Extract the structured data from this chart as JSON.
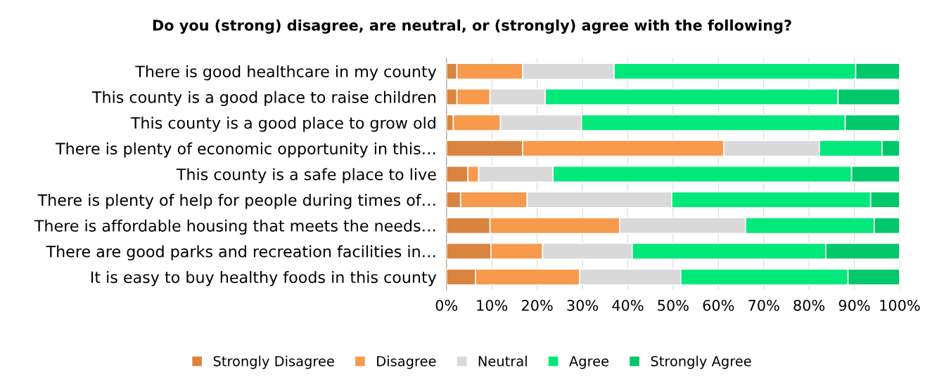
{
  "chart_data": {
    "type": "bar",
    "orientation": "horizontal",
    "stacked": true,
    "title": "Do you (strong) disagree, are neutral, or (strongly) agree with the following?",
    "categories": [
      "There is good healthcare in my county",
      "This county is a good place to raise children",
      "This county is a good place to grow old",
      "There is plenty of economic opportunity in this…",
      "This county is a safe place to live",
      "There is plenty of help for people during times of…",
      "There is affordable housing that meets the needs…",
      "There are good parks and recreation facilities in…",
      "It is easy to buy healthy foods in this county"
    ],
    "series": [
      {
        "name": "Strongly Disagree",
        "color": "#d9843f",
        "values": [
          2.3,
          2.3,
          1.5,
          16.8,
          4.7,
          3.1,
          9.6,
          9.8,
          6.4
        ]
      },
      {
        "name": "Disagree",
        "color": "#f79a4b",
        "values": [
          14.5,
          7.3,
          10.4,
          44.4,
          2.4,
          14.7,
          28.6,
          11.4,
          23.0
        ]
      },
      {
        "name": "Neutral",
        "color": "#d9d9d9",
        "values": [
          20.2,
          12.2,
          17.9,
          21.1,
          16.4,
          31.9,
          27.8,
          19.8,
          22.3
        ]
      },
      {
        "name": "Agree",
        "color": "#00e87a",
        "values": [
          53.3,
          64.6,
          58.2,
          13.8,
          65.9,
          43.9,
          28.4,
          42.7,
          36.9
        ]
      },
      {
        "name": "Strongly Agree",
        "color": "#00c86a",
        "values": [
          9.7,
          13.6,
          12.0,
          3.9,
          10.6,
          6.4,
          5.6,
          16.3,
          11.4
        ]
      }
    ],
    "xlim": [
      0,
      100
    ],
    "xticks": [
      {
        "value": 0,
        "label": "0%"
      },
      {
        "value": 10,
        "label": "10%"
      },
      {
        "value": 20,
        "label": "20%"
      },
      {
        "value": 30,
        "label": "30%"
      },
      {
        "value": 40,
        "label": "40%"
      },
      {
        "value": 50,
        "label": "50%"
      },
      {
        "value": 60,
        "label": "60%"
      },
      {
        "value": 70,
        "label": "70%"
      },
      {
        "value": 80,
        "label": "80%"
      },
      {
        "value": 90,
        "label": "90%"
      },
      {
        "value": 100,
        "label": "100%"
      }
    ],
    "grid": "x",
    "legend": "bottom"
  }
}
